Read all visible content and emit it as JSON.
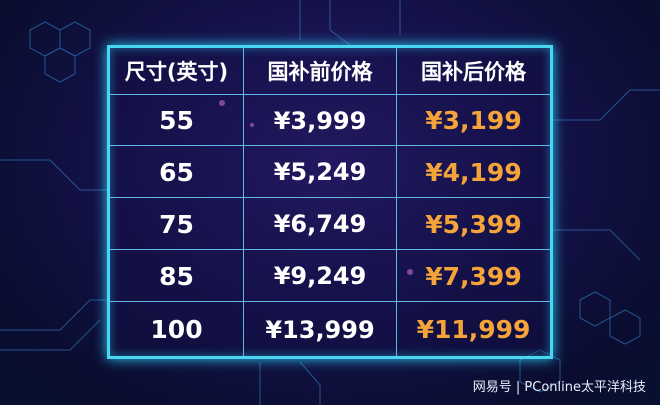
{
  "table": {
    "headers": [
      "尺寸(英寸)",
      "国补前价格",
      "国补后价格"
    ],
    "rows": [
      {
        "size": "55",
        "before": "¥3,999",
        "after": "¥3,199"
      },
      {
        "size": "65",
        "before": "¥5,249",
        "after": "¥4,199"
      },
      {
        "size": "75",
        "before": "¥6,749",
        "after": "¥5,399"
      },
      {
        "size": "85",
        "before": "¥9,249",
        "after": "¥7,399"
      },
      {
        "size": "100",
        "before": "¥13,999",
        "after": "¥11,999"
      }
    ]
  },
  "watermark": "网易号 | PConline太平洋科技",
  "colors": {
    "border": "#49d6f2",
    "after_price": "#f5a43a",
    "background": "#15124a"
  }
}
